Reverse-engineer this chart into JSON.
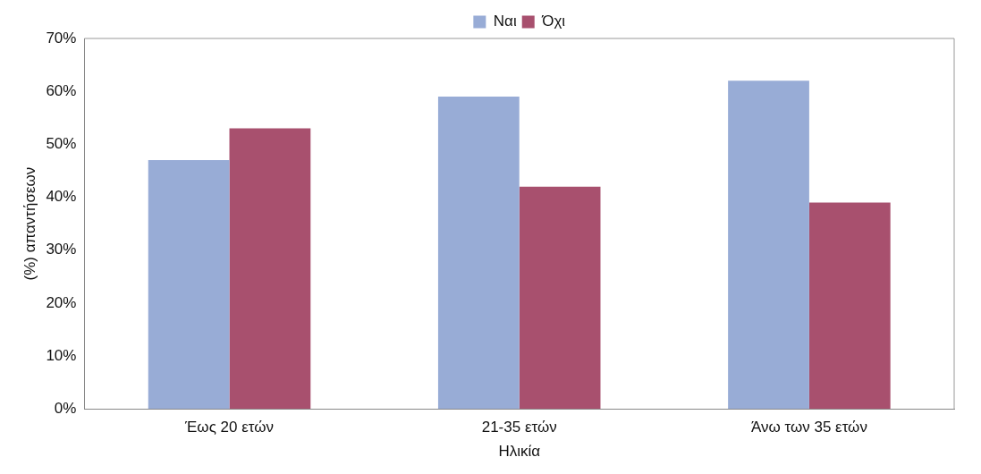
{
  "chart_data": {
    "type": "bar",
    "xlabel": "Ηλικία",
    "ylabel": "(%) απαντήσεων",
    "categories": [
      "Έως 20 ετών",
      "21-35 ετών",
      "Άνω των 35 ετών"
    ],
    "series": [
      {
        "name": "Ναι",
        "color": "#98acd6",
        "values": [
          47,
          59,
          62
        ]
      },
      {
        "name": "Όχι",
        "color": "#a8506e",
        "values": [
          53,
          42,
          39
        ]
      }
    ],
    "ylim": [
      0,
      70
    ],
    "yticks": [
      {
        "value": 0,
        "label": "0%"
      },
      {
        "value": 10,
        "label": "10%"
      },
      {
        "value": 20,
        "label": "20%"
      },
      {
        "value": 30,
        "label": "30%"
      },
      {
        "value": 40,
        "label": "40%"
      },
      {
        "value": 50,
        "label": "50%"
      },
      {
        "value": 60,
        "label": "60%"
      },
      {
        "value": 70,
        "label": "70%"
      }
    ],
    "grid": false,
    "legend": "top"
  }
}
